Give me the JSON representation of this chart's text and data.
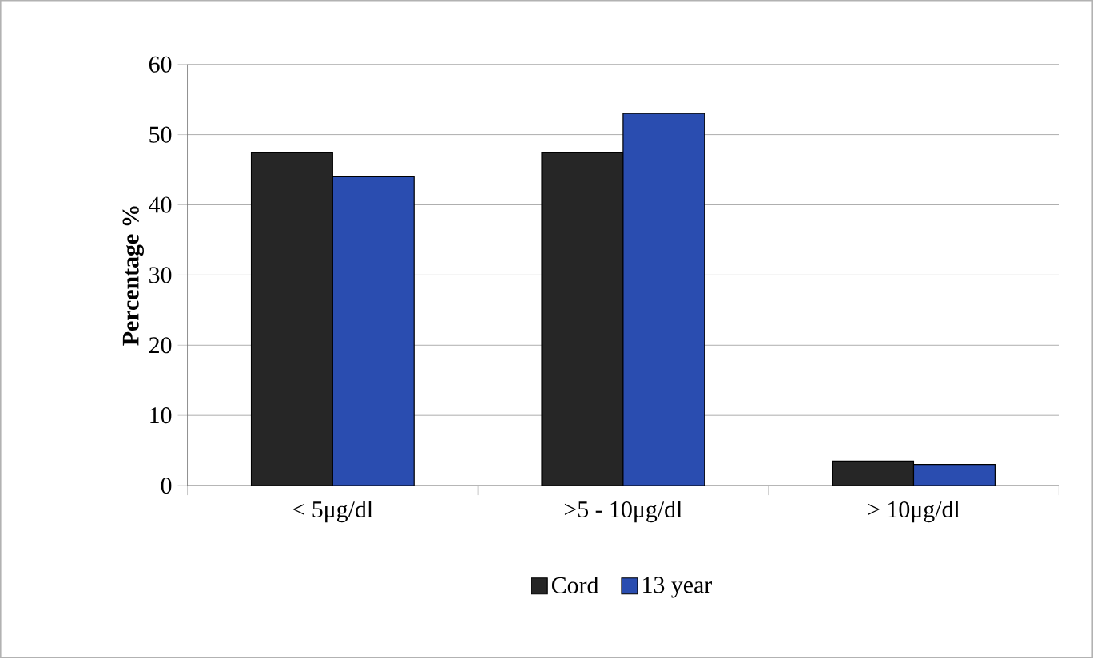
{
  "chart_data": {
    "type": "bar",
    "ylabel": "Percentage %",
    "categories": [
      "< 5μg/dl",
      ">5 - 10μg/dl",
      "> 10μg/dl"
    ],
    "series": [
      {
        "name": "Cord",
        "color": "#262626",
        "values": [
          47.5,
          47.5,
          3.5
        ]
      },
      {
        "name": "13 year",
        "color": "#2a4db0",
        "values": [
          44,
          53,
          3
        ]
      }
    ],
    "ylim": [
      0,
      60
    ],
    "yticks": [
      0,
      10,
      20,
      30,
      40,
      50,
      60
    ],
    "grid": "y",
    "legend": "bottom"
  }
}
